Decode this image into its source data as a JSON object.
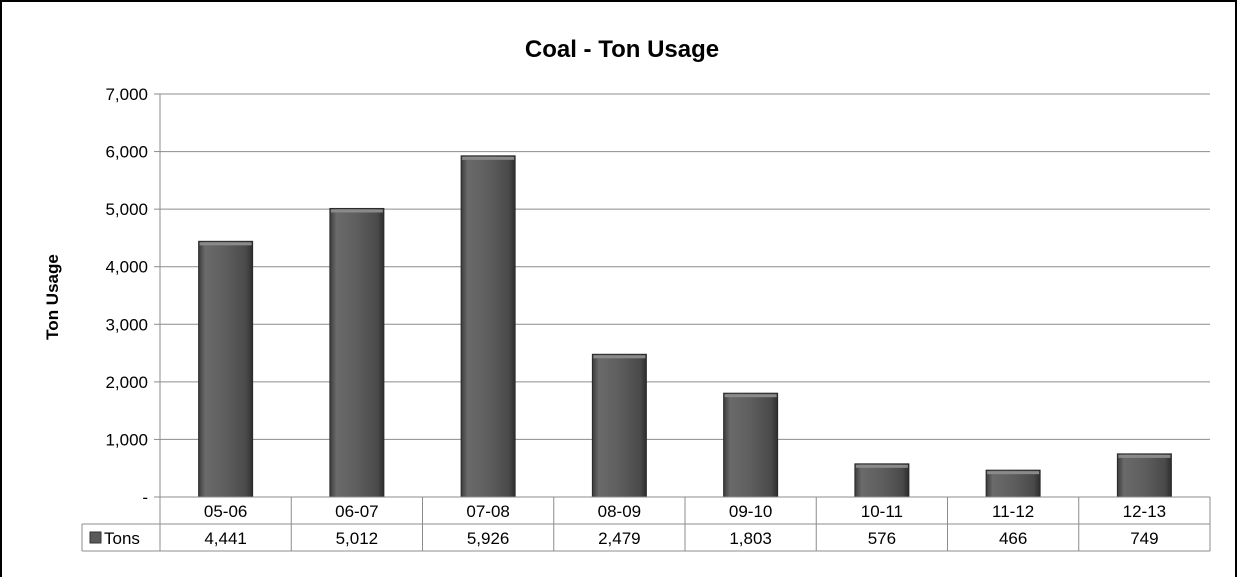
{
  "chart_data": {
    "type": "bar",
    "title": "Coal - Ton Usage",
    "xlabel": "",
    "ylabel": "Ton Usage",
    "ylim": [
      0,
      7000
    ],
    "yticks": [
      0,
      1000,
      2000,
      3000,
      4000,
      5000,
      6000,
      7000
    ],
    "ytick_labels": [
      "-",
      "1,000",
      "2,000",
      "3,000",
      "4,000",
      "5,000",
      "6,000",
      "7,000"
    ],
    "categories": [
      "05-06",
      "06-07",
      "07-08",
      "08-09",
      "09-10",
      "10-11",
      "11-12",
      "12-13"
    ],
    "series": [
      {
        "name": "Tons",
        "values": [
          4441,
          5012,
          5926,
          2479,
          1803,
          576,
          466,
          749
        ],
        "labels": [
          "4,441",
          "5,012",
          "5,926",
          "2,479",
          "1,803",
          "576",
          "466",
          "749"
        ],
        "color": "#5a5a5a"
      }
    ],
    "grid": true,
    "legend": "data-table"
  }
}
